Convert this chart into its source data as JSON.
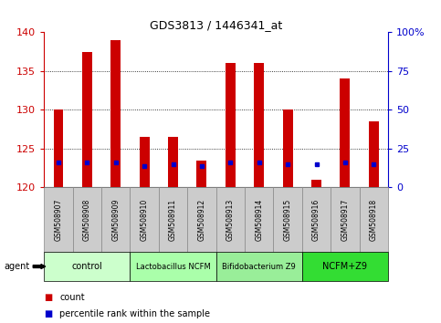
{
  "title": "GDS3813 / 1446341_at",
  "samples": [
    "GSM508907",
    "GSM508908",
    "GSM508909",
    "GSM508910",
    "GSM508911",
    "GSM508912",
    "GSM508913",
    "GSM508914",
    "GSM508915",
    "GSM508916",
    "GSM508917",
    "GSM508918"
  ],
  "count_values": [
    130,
    137.5,
    139,
    126.5,
    126.5,
    123.5,
    136,
    136,
    130,
    121,
    134,
    128.5
  ],
  "percentile_values": [
    16,
    16,
    16,
    14,
    15,
    14,
    16,
    16,
    15,
    15,
    16,
    15
  ],
  "ymin": 120,
  "ymax": 140,
  "yticks": [
    120,
    125,
    130,
    135,
    140
  ],
  "y2min": 0,
  "y2max": 100,
  "y2ticks": [
    0,
    25,
    50,
    75,
    100
  ],
  "y2ticklabels": [
    "0",
    "25",
    "50",
    "75",
    "100%"
  ],
  "bar_color": "#cc0000",
  "blue_color": "#0000cc",
  "groups": [
    {
      "label": "control",
      "start": 0,
      "end": 3,
      "color": "#ccffcc"
    },
    {
      "label": "Lactobacillus NCFM",
      "start": 3,
      "end": 6,
      "color": "#aaffaa"
    },
    {
      "label": "Bifidobacterium Z9",
      "start": 6,
      "end": 9,
      "color": "#99ee99"
    },
    {
      "label": "NCFM+Z9",
      "start": 9,
      "end": 12,
      "color": "#33dd33"
    }
  ],
  "tick_color_left": "#cc0000",
  "tick_color_right": "#0000cc",
  "bar_width": 0.35,
  "legend_count_color": "#cc0000",
  "legend_pct_color": "#0000cc",
  "background_color": "#ffffff",
  "sample_box_color": "#cccccc",
  "sample_box_edge": "#888888"
}
